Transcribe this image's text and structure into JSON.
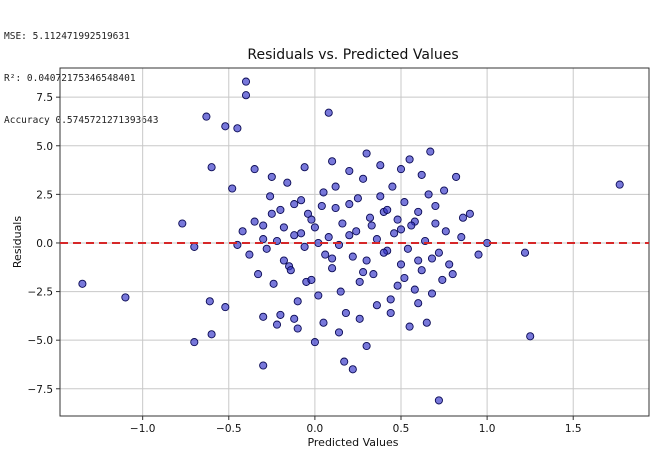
{
  "metrics": {
    "mse": "MSE: 5.112471992519631",
    "r2": "R²: 0.04072175346548401",
    "accuracy": "Accuracy 0.5745721271393643"
  },
  "colors": {
    "points": "#2f2fc6",
    "point_edge": "#0a0a55",
    "zero_line": "#d62728",
    "grid": "#c8c8c8",
    "axes": "#333333"
  },
  "chart_data": {
    "type": "scatter",
    "title": "Residuals vs. Predicted Values",
    "xlabel": "Predicted Values",
    "ylabel": "Residuals",
    "xlim": [
      -1.48,
      1.94
    ],
    "ylim": [
      -8.9,
      9.0
    ],
    "xticks": [
      -1.0,
      -0.5,
      0.0,
      0.5,
      1.0,
      1.5
    ],
    "xtick_labels": [
      "−1.0",
      "−0.5",
      "0.0",
      "0.5",
      "1.0",
      "1.5"
    ],
    "yticks": [
      -7.5,
      -5.0,
      -2.5,
      0.0,
      2.5,
      5.0,
      7.5
    ],
    "ytick_labels": [
      "−7.5",
      "−5.0",
      "−2.5",
      "0.0",
      "2.5",
      "5.0",
      "7.5"
    ],
    "grid": true,
    "reference_line": {
      "y": 0,
      "style": "dashed"
    },
    "points": [
      {
        "x": -1.35,
        "y": -2.1
      },
      {
        "x": -1.1,
        "y": -2.8
      },
      {
        "x": -0.77,
        "y": 1.0
      },
      {
        "x": -0.7,
        "y": -5.1
      },
      {
        "x": -0.7,
        "y": -0.2
      },
      {
        "x": -0.63,
        "y": 6.5
      },
      {
        "x": -0.61,
        "y": -3.0
      },
      {
        "x": -0.6,
        "y": 3.9
      },
      {
        "x": -0.6,
        "y": -4.7
      },
      {
        "x": -0.52,
        "y": 6.0
      },
      {
        "x": -0.52,
        "y": -3.3
      },
      {
        "x": -0.48,
        "y": 2.8
      },
      {
        "x": -0.45,
        "y": 5.9
      },
      {
        "x": -0.4,
        "y": 8.3
      },
      {
        "x": -0.4,
        "y": 7.6
      },
      {
        "x": -0.35,
        "y": 3.8
      },
      {
        "x": -0.3,
        "y": -6.3
      },
      {
        "x": -0.3,
        "y": 0.2
      },
      {
        "x": -0.25,
        "y": 1.5
      },
      {
        "x": -0.2,
        "y": -3.7
      },
      {
        "x": -0.18,
        "y": 0.8
      },
      {
        "x": -0.15,
        "y": -1.2
      },
      {
        "x": -0.12,
        "y": 2.0
      },
      {
        "x": -0.1,
        "y": -4.4
      },
      {
        "x": -0.08,
        "y": 0.5
      },
      {
        "x": -0.05,
        "y": -2.0
      },
      {
        "x": -0.02,
        "y": 1.2
      },
      {
        "x": 0.0,
        "y": -5.1
      },
      {
        "x": 0.02,
        "y": 0.0
      },
      {
        "x": 0.05,
        "y": 2.6
      },
      {
        "x": 0.08,
        "y": 6.7
      },
      {
        "x": 0.1,
        "y": -0.8
      },
      {
        "x": 0.12,
        "y": 1.8
      },
      {
        "x": 0.15,
        "y": -2.5
      },
      {
        "x": 0.17,
        "y": -6.1
      },
      {
        "x": 0.2,
        "y": 0.4
      },
      {
        "x": 0.22,
        "y": -6.5
      },
      {
        "x": 0.25,
        "y": 2.3
      },
      {
        "x": 0.28,
        "y": -1.5
      },
      {
        "x": 0.3,
        "y": -5.3
      },
      {
        "x": 0.3,
        "y": 4.6
      },
      {
        "x": 0.33,
        "y": 0.9
      },
      {
        "x": 0.36,
        "y": -3.2
      },
      {
        "x": 0.4,
        "y": 1.6
      },
      {
        "x": 0.42,
        "y": -0.4
      },
      {
        "x": 0.45,
        "y": 2.9
      },
      {
        "x": 0.48,
        "y": -2.2
      },
      {
        "x": 0.5,
        "y": 0.7
      },
      {
        "x": 0.52,
        "y": -1.8
      },
      {
        "x": 0.55,
        "y": 4.3
      },
      {
        "x": 0.55,
        "y": -4.3
      },
      {
        "x": 0.58,
        "y": 1.1
      },
      {
        "x": 0.6,
        "y": -0.9
      },
      {
        "x": 0.62,
        "y": 3.5
      },
      {
        "x": 0.65,
        "y": -4.1
      },
      {
        "x": 0.67,
        "y": 4.7
      },
      {
        "x": 0.68,
        "y": -2.6
      },
      {
        "x": 0.7,
        "y": 1.9
      },
      {
        "x": 0.72,
        "y": -0.5
      },
      {
        "x": 0.72,
        "y": -8.1
      },
      {
        "x": 0.75,
        "y": 2.7
      },
      {
        "x": 0.78,
        "y": -1.1
      },
      {
        "x": 0.82,
        "y": 3.4
      },
      {
        "x": 0.85,
        "y": 0.3
      },
      {
        "x": 0.9,
        "y": 1.5
      },
      {
        "x": 0.95,
        "y": -0.6
      },
      {
        "x": 1.0,
        "y": 0.0
      },
      {
        "x": 1.22,
        "y": -0.5
      },
      {
        "x": 1.25,
        "y": -4.8
      },
      {
        "x": 1.77,
        "y": 3.0
      },
      {
        "x": -0.45,
        "y": -0.1
      },
      {
        "x": -0.42,
        "y": 0.6
      },
      {
        "x": -0.38,
        "y": -0.6
      },
      {
        "x": -0.35,
        "y": 1.1
      },
      {
        "x": -0.33,
        "y": -1.6
      },
      {
        "x": -0.3,
        "y": 0.9
      },
      {
        "x": -0.28,
        "y": -0.3
      },
      {
        "x": -0.26,
        "y": 2.4
      },
      {
        "x": -0.24,
        "y": -2.1
      },
      {
        "x": -0.22,
        "y": 0.1
      },
      {
        "x": -0.2,
        "y": 1.7
      },
      {
        "x": -0.18,
        "y": -0.9
      },
      {
        "x": -0.16,
        "y": 3.1
      },
      {
        "x": -0.14,
        "y": -1.4
      },
      {
        "x": -0.12,
        "y": 0.4
      },
      {
        "x": -0.1,
        "y": -3.0
      },
      {
        "x": -0.08,
        "y": 2.2
      },
      {
        "x": -0.06,
        "y": -0.2
      },
      {
        "x": -0.04,
        "y": 1.5
      },
      {
        "x": -0.02,
        "y": -1.9
      },
      {
        "x": 0.0,
        "y": 0.8
      },
      {
        "x": 0.02,
        "y": -2.7
      },
      {
        "x": 0.04,
        "y": 1.9
      },
      {
        "x": 0.06,
        "y": -0.6
      },
      {
        "x": 0.08,
        "y": 0.3
      },
      {
        "x": 0.1,
        "y": -1.3
      },
      {
        "x": 0.12,
        "y": 2.9
      },
      {
        "x": 0.14,
        "y": -0.1
      },
      {
        "x": 0.16,
        "y": 1.0
      },
      {
        "x": 0.18,
        "y": -3.6
      },
      {
        "x": 0.2,
        "y": 2.0
      },
      {
        "x": 0.22,
        "y": -0.7
      },
      {
        "x": 0.24,
        "y": 0.6
      },
      {
        "x": 0.26,
        "y": -2.0
      },
      {
        "x": 0.28,
        "y": 3.3
      },
      {
        "x": 0.3,
        "y": -0.9
      },
      {
        "x": 0.32,
        "y": 1.3
      },
      {
        "x": 0.34,
        "y": -1.6
      },
      {
        "x": 0.36,
        "y": 0.2
      },
      {
        "x": 0.38,
        "y": 2.4
      },
      {
        "x": 0.4,
        "y": -0.5
      },
      {
        "x": 0.42,
        "y": 1.7
      },
      {
        "x": 0.44,
        "y": -2.9
      },
      {
        "x": 0.46,
        "y": 0.5
      },
      {
        "x": 0.48,
        "y": 1.2
      },
      {
        "x": 0.5,
        "y": -1.1
      },
      {
        "x": 0.52,
        "y": 2.1
      },
      {
        "x": 0.54,
        "y": -0.3
      },
      {
        "x": 0.56,
        "y": 0.9
      },
      {
        "x": 0.58,
        "y": -2.4
      },
      {
        "x": 0.6,
        "y": 1.6
      },
      {
        "x": 0.62,
        "y": -1.4
      },
      {
        "x": 0.64,
        "y": 0.1
      },
      {
        "x": 0.66,
        "y": 2.5
      },
      {
        "x": 0.68,
        "y": -0.8
      },
      {
        "x": 0.7,
        "y": 1.0
      },
      {
        "x": 0.74,
        "y": -1.9
      },
      {
        "x": 0.76,
        "y": 0.6
      },
      {
        "x": 0.8,
        "y": -1.6
      },
      {
        "x": 0.86,
        "y": 1.3
      },
      {
        "x": -0.3,
        "y": -3.8
      },
      {
        "x": -0.22,
        "y": -4.2
      },
      {
        "x": -0.12,
        "y": -3.9
      },
      {
        "x": 0.05,
        "y": -4.1
      },
      {
        "x": 0.14,
        "y": -4.6
      },
      {
        "x": 0.26,
        "y": -3.9
      },
      {
        "x": 0.44,
        "y": -3.6
      },
      {
        "x": 0.6,
        "y": -3.1
      },
      {
        "x": -0.25,
        "y": 3.4
      },
      {
        "x": -0.06,
        "y": 3.9
      },
      {
        "x": 0.1,
        "y": 4.2
      },
      {
        "x": 0.2,
        "y": 3.7
      },
      {
        "x": 0.38,
        "y": 4.0
      },
      {
        "x": 0.5,
        "y": 3.8
      }
    ]
  }
}
